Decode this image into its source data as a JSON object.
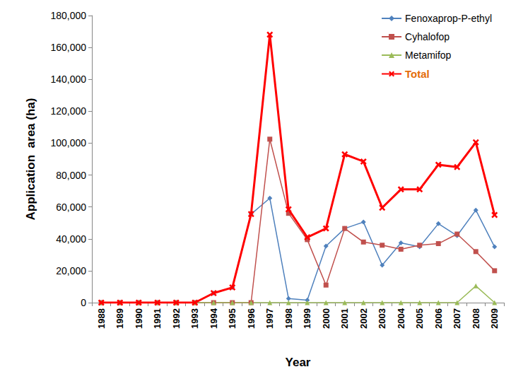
{
  "chart_data": {
    "type": "line",
    "x_label": "Year",
    "y_label": "Application  area (ha)",
    "categories": [
      "1988",
      "1989",
      "1990",
      "1991",
      "1992",
      "1993",
      "1994",
      "1995",
      "1996",
      "1997",
      "1998",
      "1999",
      "2000",
      "2001",
      "2002",
      "2003",
      "2004",
      "2005",
      "2006",
      "2007",
      "2008",
      "2009"
    ],
    "series": [
      {
        "name": "Fenoxaprop-P-ethyl",
        "color": "#4f81bd",
        "marker": "diamond",
        "values": [
          0,
          0,
          0,
          0,
          0,
          0,
          6000,
          9500,
          55500,
          65500,
          2500,
          1500,
          35500,
          46500,
          50500,
          23500,
          37500,
          35000,
          49500,
          42000,
          58000,
          35000
        ]
      },
      {
        "name": "Cyhalofop",
        "color": "#c0504d",
        "marker": "square",
        "values": [
          0,
          0,
          0,
          0,
          0,
          0,
          0,
          0,
          0,
          102500,
          56000,
          39500,
          11000,
          46500,
          38000,
          36000,
          33500,
          36000,
          37000,
          43000,
          32000,
          20000
        ]
      },
      {
        "name": "Metamifop",
        "color": "#9bbb59",
        "marker": "triangle",
        "values": [
          0,
          0,
          0,
          0,
          0,
          0,
          0,
          0,
          0,
          0,
          0,
          0,
          0,
          0,
          0,
          0,
          0,
          0,
          0,
          0,
          10500,
          0
        ]
      },
      {
        "name": "Total",
        "color": "#ff0000",
        "marker": "x",
        "values": [
          0,
          0,
          0,
          0,
          0,
          0,
          6000,
          9500,
          55500,
          168000,
          58500,
          41000,
          46500,
          93000,
          88500,
          59500,
          71000,
          71000,
          86500,
          85000,
          100500,
          55000
        ]
      }
    ],
    "ylim": [
      0,
      180000
    ],
    "yticks": [
      0,
      20000,
      40000,
      60000,
      80000,
      100000,
      120000,
      140000,
      160000,
      180000
    ],
    "grid": false,
    "legend": "upper right"
  }
}
